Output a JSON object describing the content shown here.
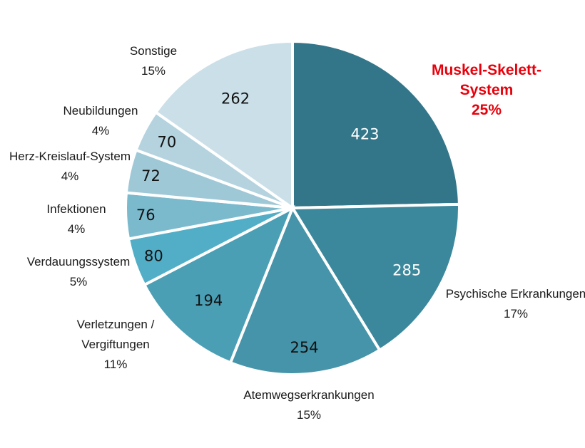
{
  "chart_data": {
    "type": "pie",
    "title": "",
    "slices": [
      {
        "name": "Muskel-Skelett-System",
        "label_lines": [
          "Muskel-Skelett-",
          "System"
        ],
        "value": 423,
        "percent": "25%",
        "color": "#33768a",
        "value_color": "#ffffff",
        "highlight": true
      },
      {
        "name": "Psychische Erkrankungen",
        "label_lines": [
          "Psychische Erkrankungen"
        ],
        "value": 285,
        "percent": "17%",
        "color": "#3b889c",
        "value_color": "#ffffff",
        "highlight": false
      },
      {
        "name": "Atemwegserkrankungen",
        "label_lines": [
          "Atemwegserkrankungen"
        ],
        "value": 254,
        "percent": "15%",
        "color": "#4594a9",
        "value_color": "#111111",
        "highlight": false
      },
      {
        "name": "Verletzungen / Vergiftungen",
        "label_lines": [
          "Verletzungen  /",
          "Vergiftungen"
        ],
        "value": 194,
        "percent": "11%",
        "color": "#4b9fb5",
        "value_color": "#111111",
        "highlight": false
      },
      {
        "name": "Verdauungssystem",
        "label_lines": [
          "Verdauungssystem"
        ],
        "value": 80,
        "percent": "5%",
        "color": "#52aec7",
        "value_color": "#111111",
        "highlight": false
      },
      {
        "name": "Infektionen",
        "label_lines": [
          "Infektionen"
        ],
        "value": 76,
        "percent": "4%",
        "color": "#7bbacd",
        "value_color": "#111111",
        "highlight": false
      },
      {
        "name": "Herz-Kreislauf-System",
        "label_lines": [
          "Herz-Kreislauf-System"
        ],
        "value": 72,
        "percent": "4%",
        "color": "#9fc8d7",
        "value_color": "#111111",
        "highlight": false
      },
      {
        "name": "Neubildungen",
        "label_lines": [
          "Neubildungen"
        ],
        "value": 70,
        "percent": "4%",
        "color": "#b4d3df",
        "value_color": "#111111",
        "highlight": false
      },
      {
        "name": "Sonstige",
        "label_lines": [
          "Sonstige"
        ],
        "value": 262,
        "percent": "15%",
        "color": "#cbdfe8",
        "value_color": "#111111",
        "highlight": false
      }
    ],
    "start_angle_deg": 0,
    "direction": "clockwise"
  }
}
